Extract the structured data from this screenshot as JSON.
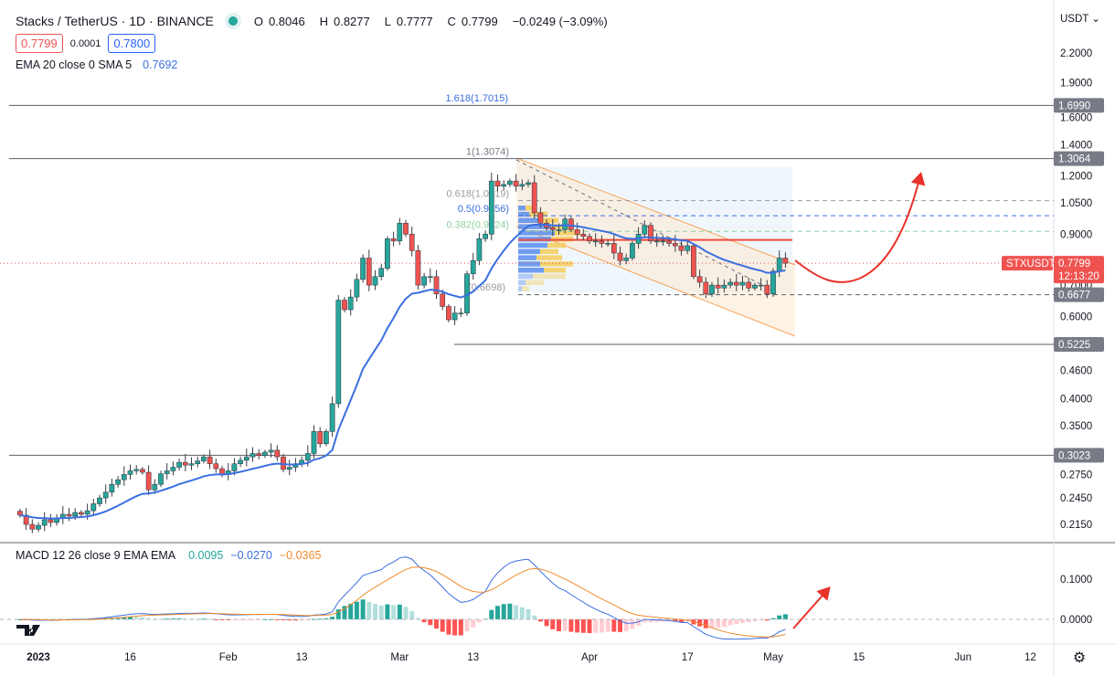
{
  "header": {
    "title": "Stacks / TetherUS · 1D · BINANCE",
    "ohlc": [
      {
        "label": "O",
        "value": "0.8046"
      },
      {
        "label": "H",
        "value": "0.8277"
      },
      {
        "label": "L",
        "value": "0.7777"
      },
      {
        "label": "C",
        "value": "0.7799"
      }
    ],
    "change": "−0.0249 (−3.09%)",
    "bid": "0.7799",
    "spread": "0.0001",
    "ask": "0.7800",
    "ema_legend": "EMA 20 close 0 SMA 5",
    "ema_value": "0.7692",
    "macd_legend": "MACD 12 26 close 9 EMA EMA",
    "macd_hist": "0.0095",
    "macd_line": "−0.0270",
    "macd_signal": "−0.0365"
  },
  "colors": {
    "up": "#26a69a",
    "down": "#ef5350",
    "ema": "#3b6fe0",
    "macd": "#3b6fe0",
    "signal": "#f08a2c",
    "arrow": "#e8322a",
    "poc": "#ef4a3c",
    "channel": "#f5a45a"
  },
  "price_axis": {
    "currency": "USDT",
    "ticks": [
      "2.2000",
      "1.9000",
      "1.6000",
      "1.4000",
      "1.2000",
      "1.0500",
      "0.9000",
      "0.7000",
      "0.6000",
      "0.4600",
      "0.4000",
      "0.3500",
      "0.2750",
      "0.2450",
      "0.2150"
    ],
    "macd_ticks": [
      "0.1000",
      "0.0000"
    ]
  },
  "price_labels": [
    {
      "value": "1.6990"
    },
    {
      "value": "1.3064"
    },
    {
      "value": "0.6677"
    },
    {
      "value": "0.5225"
    },
    {
      "value": "0.3023"
    }
  ],
  "current": {
    "symbol": "STXUSDT",
    "price": "0.7799",
    "countdown": "12:13:20"
  },
  "fib": [
    {
      "label": "1.618(1.7015)",
      "price": 1.7015,
      "color": "#3b6fe0"
    },
    {
      "label": "1(1.3074)",
      "price": 1.3074,
      "color": "#787b86"
    },
    {
      "label": "0.618(1.0619)",
      "price": 1.0619,
      "color": "#9a9ca3"
    },
    {
      "label": "0.5(0.9856)",
      "price": 0.9856,
      "color": "#3b6fe0"
    },
    {
      "label": "0.382(0.9124)",
      "price": 0.9124,
      "color": "#8fcf9f"
    },
    {
      "label": "(0.6698)",
      "price": 0.6698,
      "color": "#9a9ca3"
    }
  ],
  "time_axis": [
    {
      "label": "2023",
      "date": "2023-01-01"
    },
    {
      "label": "16",
      "date": "2023-01-16"
    },
    {
      "label": "Feb",
      "date": "2023-02-01"
    },
    {
      "label": "13",
      "date": "2023-02-13"
    },
    {
      "label": "Mar",
      "date": "2023-03-01"
    },
    {
      "label": "13",
      "date": "2023-03-13"
    },
    {
      "label": "Apr",
      "date": "2023-04-01"
    },
    {
      "label": "17",
      "date": "2023-04-17"
    },
    {
      "label": "May",
      "date": "2023-05-01"
    },
    {
      "label": "15",
      "date": "2023-05-15"
    },
    {
      "label": "Jun",
      "date": "2023-06-01"
    },
    {
      "label": "12",
      "date": "2023-06-12"
    }
  ],
  "chart_data": {
    "type": "candlestick",
    "interval": "1D",
    "x_start": "2022-12-29",
    "y_scale": "log",
    "ylim": [
      0.205,
      2.35
    ],
    "closes": [
      0.225,
      0.215,
      0.21,
      0.214,
      0.22,
      0.217,
      0.222,
      0.226,
      0.224,
      0.228,
      0.226,
      0.23,
      0.238,
      0.245,
      0.252,
      0.262,
      0.268,
      0.275,
      0.28,
      0.282,
      0.278,
      0.255,
      0.262,
      0.276,
      0.28,
      0.285,
      0.292,
      0.288,
      0.29,
      0.294,
      0.3,
      0.29,
      0.283,
      0.275,
      0.28,
      0.29,
      0.295,
      0.3,
      0.305,
      0.302,
      0.307,
      0.31,
      0.3,
      0.282,
      0.285,
      0.29,
      0.295,
      0.305,
      0.34,
      0.32,
      0.34,
      0.39,
      0.65,
      0.62,
      0.66,
      0.72,
      0.8,
      0.7,
      0.73,
      0.76,
      0.88,
      0.87,
      0.95,
      0.9,
      0.83,
      0.7,
      0.73,
      0.73,
      0.67,
      0.63,
      0.59,
      0.61,
      0.61,
      0.74,
      0.79,
      0.88,
      0.9,
      1.17,
      1.14,
      1.15,
      1.17,
      1.14,
      1.15,
      1.16,
      1.0,
      0.95,
      0.93,
      0.92,
      0.92,
      0.97,
      0.92,
      0.9,
      0.89,
      0.87,
      0.87,
      0.86,
      0.86,
      0.82,
      0.79,
      0.8,
      0.86,
      0.9,
      0.94,
      0.87,
      0.87,
      0.87,
      0.86,
      0.85,
      0.83,
      0.85,
      0.73,
      0.71,
      0.67,
      0.7,
      0.69,
      0.7,
      0.71,
      0.7,
      0.71,
      0.69,
      0.7,
      0.7,
      0.67,
      0.75,
      0.8,
      0.7799
    ],
    "indicators": [
      "EMA 20",
      "MACD 12 26 9"
    ],
    "volume_profile_rows": [
      [
        0.2,
        0.3
      ],
      [
        0.3,
        0.5
      ],
      [
        0.6,
        0.5
      ],
      [
        0.9,
        0.6
      ],
      [
        1.0,
        0.7
      ],
      [
        0.9,
        0.6
      ],
      [
        0.8,
        0.5
      ],
      [
        0.6,
        0.5
      ],
      [
        0.5,
        0.7
      ],
      [
        0.6,
        0.9
      ],
      [
        0.7,
        0.6
      ],
      [
        0.4,
        0.9
      ],
      [
        0.2,
        0.5
      ],
      [
        0.1,
        0.2
      ]
    ],
    "poc_price": 0.875
  }
}
